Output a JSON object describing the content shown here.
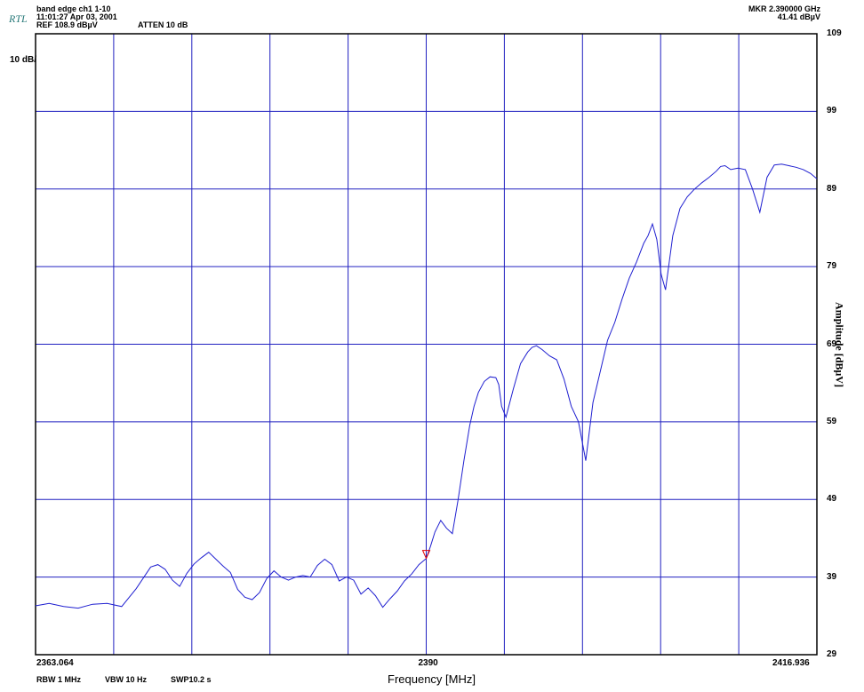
{
  "header": {
    "logo": "RTL",
    "title": "band edge ch1 1-10",
    "timestamp": "11:01:27 Apr 03, 2001",
    "ref": "REF 108.9 dBµV",
    "atten": "ATTEN 10 dB",
    "marker_freq": "MKR  2.390000 GHz",
    "marker_amp": "41.41 dBµV",
    "scale": "10 dB/"
  },
  "footer": {
    "rbw": "RBW 1 MHz",
    "vbw": "VBW 10 Hz",
    "sweep": "SWP10.2 s"
  },
  "colors": {
    "trace": "#1f1fd0",
    "grid": "#2020c0",
    "marker": "#e00000",
    "frame": "#000000"
  },
  "chart_data": {
    "type": "line",
    "xlabel": "Frequency [MHz]",
    "ylabel": "Amplitude [dBµV]",
    "xlim": [
      2363.064,
      2416.936
    ],
    "ylim": [
      29,
      109
    ],
    "x_tick_labels": [
      "2363.064",
      "2390",
      "2416.936"
    ],
    "y_ticks": [
      109,
      99,
      89,
      79,
      69,
      59,
      49,
      39,
      29
    ],
    "grid": true,
    "marker": {
      "x": 2390.0,
      "y": 41.41
    },
    "series": [
      {
        "x": [
          2363.06,
          2364.0,
          2365.0,
          2366.0,
          2367.0,
          2368.0,
          2369.0,
          2370.0,
          2371.0,
          2371.5,
          2372.0,
          2372.5,
          2373.0,
          2373.5,
          2374.0,
          2374.5,
          2375.0,
          2375.5,
          2376.0,
          2376.5,
          2377.0,
          2377.5,
          2378.0,
          2378.5,
          2379.0,
          2379.5,
          2380.0,
          2380.5,
          2381.0,
          2381.5,
          2382.0,
          2382.5,
          2383.0,
          2383.5,
          2384.0,
          2384.5,
          2385.0,
          2385.5,
          2386.0,
          2386.5,
          2387.0,
          2387.5,
          2388.0,
          2388.5,
          2389.0,
          2389.5,
          2390.0,
          2390.3,
          2390.6,
          2391.0,
          2391.4,
          2391.8,
          2392.2,
          2392.6,
          2393.0,
          2393.3,
          2393.6,
          2394.0,
          2394.4,
          2394.8,
          2395.0,
          2395.2,
          2395.5,
          2396.0,
          2396.5,
          2397.0,
          2397.3,
          2397.6,
          2398.0,
          2398.5,
          2399.0,
          2399.5,
          2400.0,
          2400.5,
          2400.8,
          2401.0,
          2401.2,
          2401.5,
          2402.0,
          2402.5,
          2403.0,
          2403.5,
          2404.0,
          2404.5,
          2405.0,
          2405.3,
          2405.6,
          2405.9,
          2406.2,
          2406.5,
          2407.0,
          2407.5,
          2408.0,
          2408.5,
          2409.0,
          2409.5,
          2410.0,
          2410.3,
          2410.6,
          2411.0,
          2411.5,
          2412.0,
          2412.5,
          2413.0,
          2413.5,
          2414.0,
          2414.5,
          2415.0,
          2415.5,
          2416.0,
          2416.5,
          2416.94
        ],
        "y": [
          35.3,
          35.6,
          35.2,
          35.0,
          35.5,
          35.6,
          35.2,
          37.5,
          40.3,
          40.6,
          40.0,
          38.6,
          37.8,
          39.5,
          40.7,
          41.5,
          42.2,
          41.3,
          40.4,
          39.6,
          37.4,
          36.4,
          36.1,
          37.0,
          38.8,
          39.8,
          39.0,
          38.6,
          39.0,
          39.2,
          39.0,
          40.5,
          41.3,
          40.6,
          38.5,
          39.0,
          38.6,
          36.8,
          37.6,
          36.6,
          35.1,
          36.2,
          37.2,
          38.5,
          39.4,
          40.6,
          41.4,
          43.0,
          44.8,
          46.3,
          45.3,
          44.6,
          49.0,
          54.0,
          58.5,
          61.0,
          62.8,
          64.2,
          64.8,
          64.7,
          63.8,
          61.0,
          59.6,
          63.2,
          66.5,
          68.0,
          68.6,
          68.8,
          68.3,
          67.5,
          67.0,
          64.5,
          61.0,
          59.0,
          56.0,
          54.0,
          57.0,
          61.5,
          65.5,
          69.5,
          71.8,
          74.8,
          77.5,
          79.6,
          82.0,
          83.0,
          84.5,
          82.5,
          78.0,
          76.0,
          83.0,
          86.5,
          88.0,
          89.0,
          89.8,
          90.5,
          91.3,
          91.9,
          92.0,
          91.5,
          91.7,
          91.5,
          89.0,
          86.0,
          90.5,
          92.1,
          92.2,
          92.0,
          91.8,
          91.5,
          91.0,
          90.3
        ]
      }
    ]
  }
}
